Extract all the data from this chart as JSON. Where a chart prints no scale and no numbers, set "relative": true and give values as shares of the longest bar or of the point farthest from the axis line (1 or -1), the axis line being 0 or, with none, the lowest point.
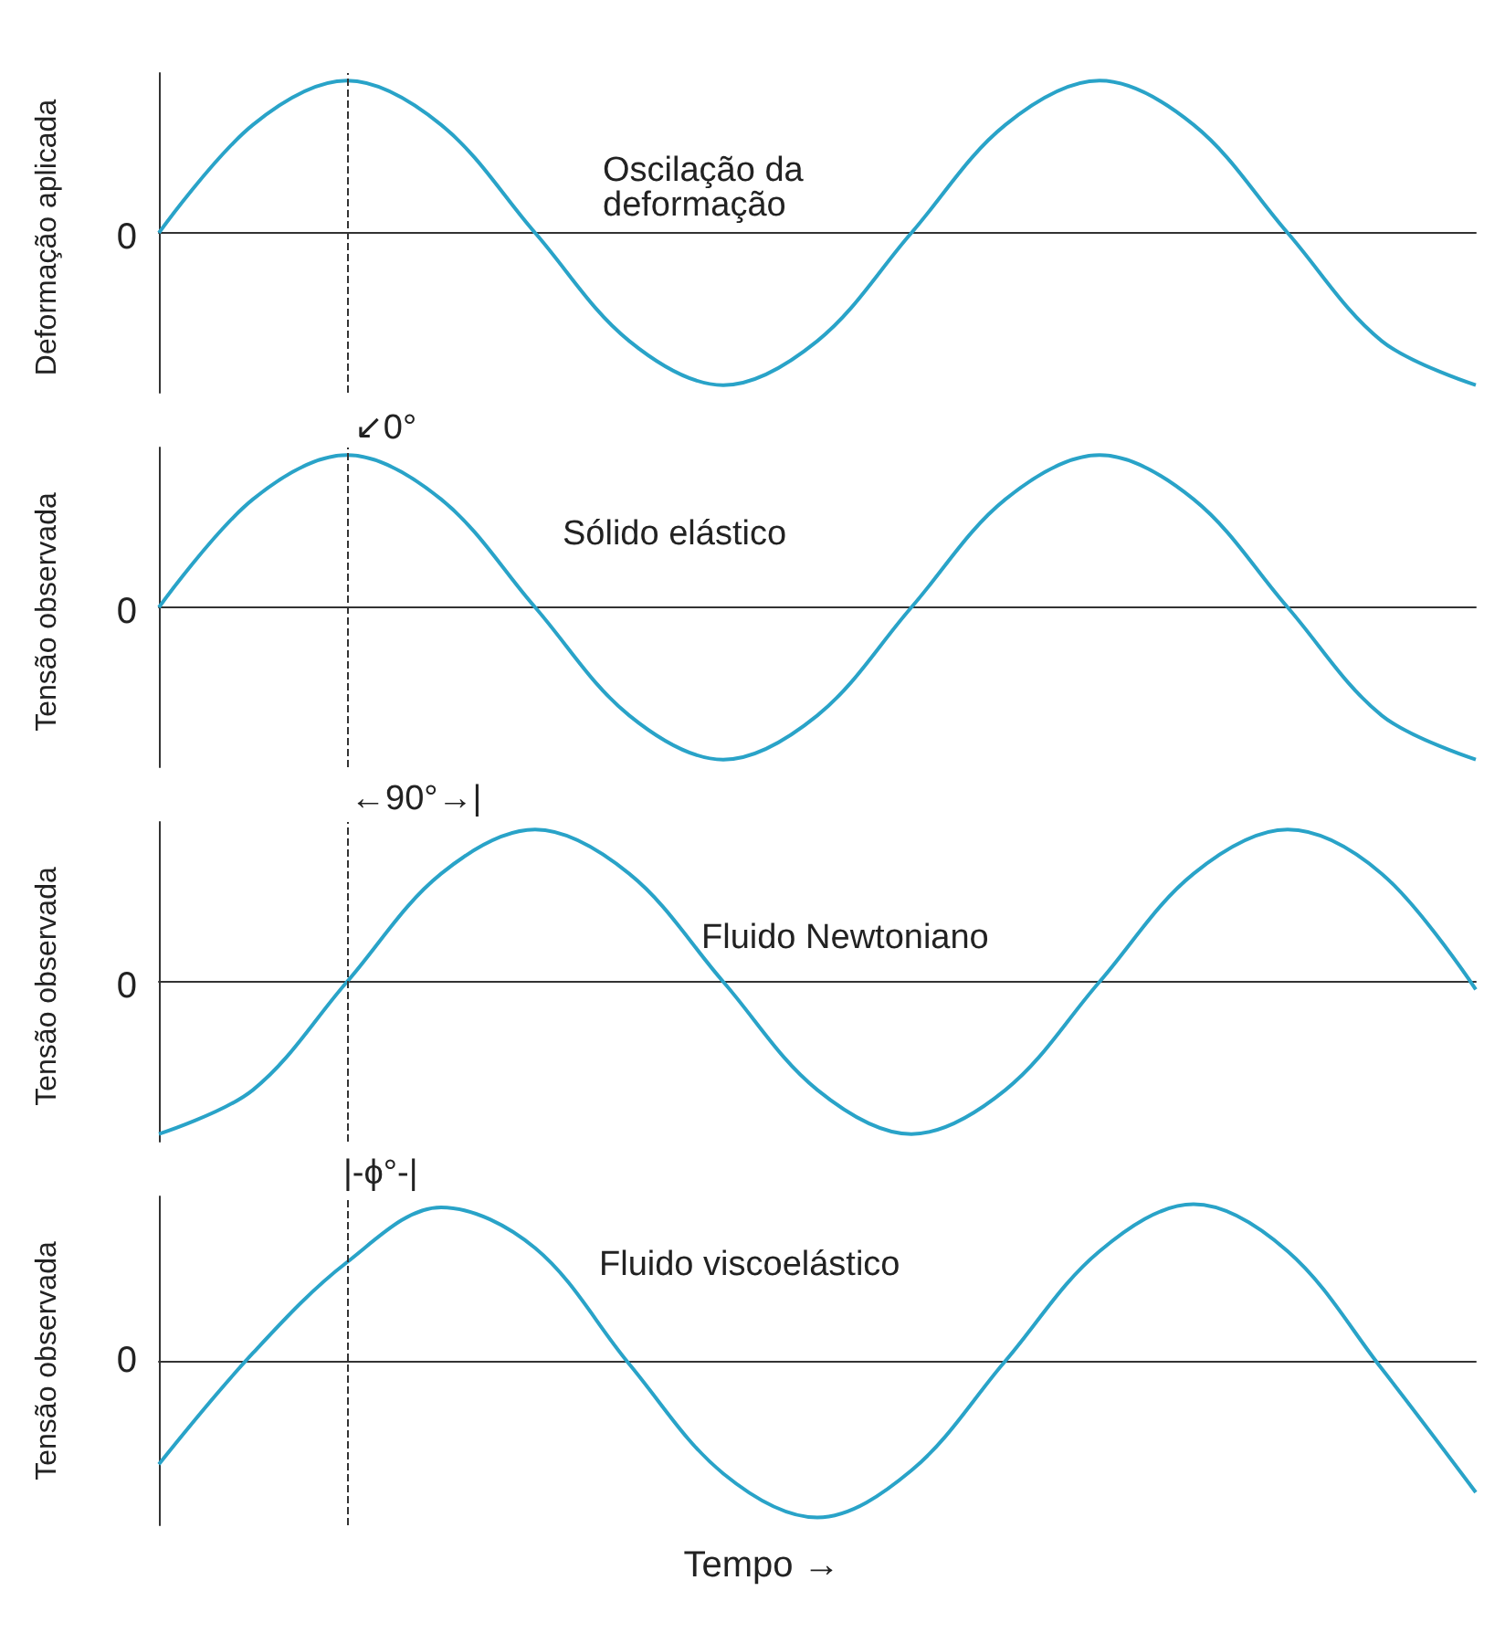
{
  "chart_data": [
    {
      "type": "line",
      "relative": true,
      "ylabel": "Deformação aplicada",
      "categories": [
        null,
        null,
        null,
        null,
        null,
        null,
        null,
        null,
        null,
        null,
        null,
        null,
        null,
        null,
        null
      ],
      "series": [
        {
          "color": "#29a3c8",
          "values": [
            0,
            0.71,
            1,
            0.71,
            0,
            -0.71,
            -1,
            -0.71,
            0,
            0.71,
            1,
            0.71,
            0,
            -0.71,
            -1
          ]
        }
      ],
      "annotations": [
        "0",
        "Oscilação da deformação"
      ],
      "grid": false,
      "marker": "none",
      "line_style": "solid"
    },
    {
      "type": "line",
      "relative": true,
      "ylabel": "Tensão observada",
      "categories": [
        null,
        null,
        null,
        null,
        null,
        null,
        null,
        null,
        null,
        null,
        null,
        null,
        null,
        null,
        null
      ],
      "series": [
        {
          "color": "#29a3c8",
          "values": [
            0,
            0.71,
            1,
            0.71,
            0,
            -0.71,
            -1,
            -0.71,
            0,
            0.71,
            1,
            0.71,
            0,
            -0.71,
            -1
          ]
        }
      ],
      "annotations": [
        "0",
        "Sólido elástico",
        "↙0°"
      ],
      "grid": false,
      "marker": "none",
      "line_style": "solid"
    },
    {
      "type": "line",
      "relative": true,
      "ylabel": "Tensão observada",
      "categories": [
        null,
        null,
        null,
        null,
        null,
        null,
        null,
        null,
        null,
        null,
        null,
        null,
        null,
        null,
        null
      ],
      "series": [
        {
          "color": "#29a3c8",
          "values": [
            -1,
            -0.71,
            0,
            0.71,
            1,
            0.71,
            0,
            -0.71,
            -1,
            -0.71,
            0,
            0.71,
            1,
            0.71,
            -0.05
          ]
        }
      ],
      "annotations": [
        "0",
        "Fluido Newtoniano",
        "←90°→|"
      ],
      "grid": false,
      "marker": "none",
      "line_style": "solid"
    },
    {
      "type": "line",
      "relative": true,
      "ylabel": "Tensão observada",
      "xlabel": "Tempo →",
      "categories": [
        null,
        null,
        null,
        null,
        null,
        null,
        null,
        null,
        null,
        null,
        null,
        null,
        null,
        null,
        null
      ],
      "series": [
        {
          "color": "#29a3c8",
          "values": [
            -0.66,
            0.05,
            0.63,
            0.98,
            0.72,
            -0.02,
            -0.72,
            -1,
            -0.7,
            0,
            0.7,
            1,
            0.7,
            -0.05,
            -0.84
          ]
        }
      ],
      "annotations": [
        "0",
        "Fluido viscoelástico",
        "|-ϕ°-|"
      ],
      "grid": false,
      "marker": "none",
      "line_style": "solid"
    }
  ]
}
